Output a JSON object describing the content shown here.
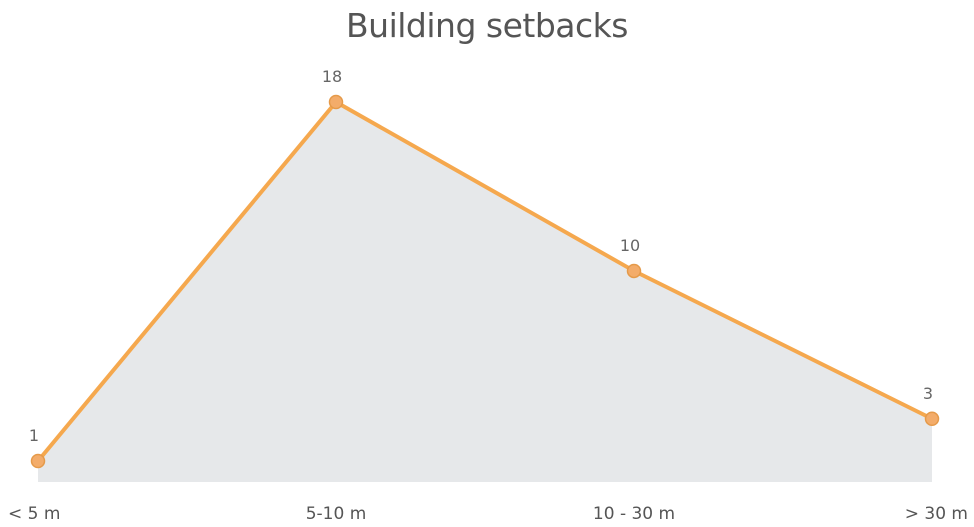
{
  "chart_data": {
    "type": "area",
    "title": "Building setbacks",
    "categories": [
      "< 5 m",
      "5-10 m",
      "10 - 30 m",
      "> 30 m"
    ],
    "values": [
      1,
      18,
      10,
      3
    ],
    "data_labels": [
      "1",
      "18",
      "10",
      "3"
    ],
    "xlabel": "",
    "ylabel": "",
    "ylim": [
      0,
      18
    ],
    "grid": false,
    "legend": "none",
    "colors": {
      "line": "#f5a84e",
      "marker_fill": "#f3ac6a",
      "marker_stroke": "#e59a4a",
      "area": "#e6e8ea"
    }
  }
}
